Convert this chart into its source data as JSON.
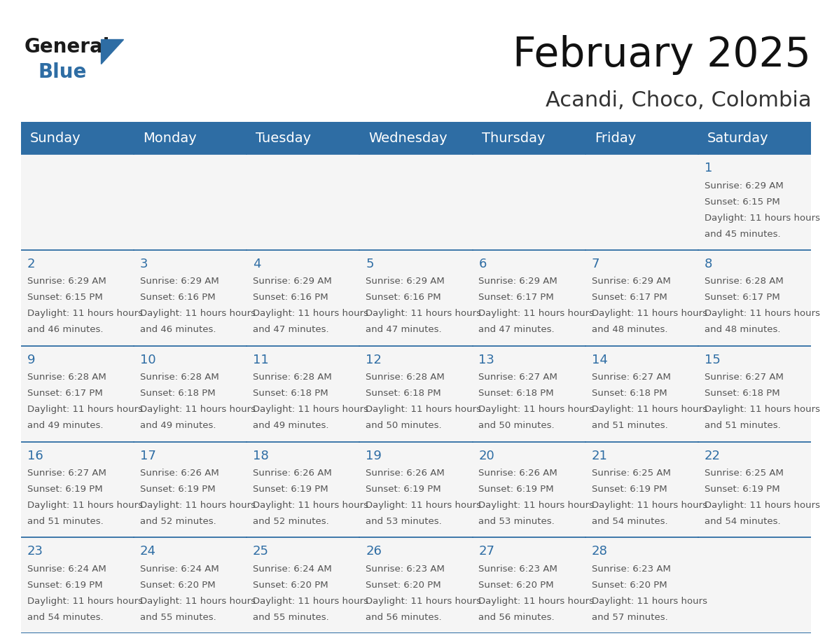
{
  "title": "February 2025",
  "subtitle": "Acandi, Choco, Colombia",
  "days_of_week": [
    "Sunday",
    "Monday",
    "Tuesday",
    "Wednesday",
    "Thursday",
    "Friday",
    "Saturday"
  ],
  "header_bg": "#2E6DA4",
  "header_text": "#FFFFFF",
  "cell_bg": "#F5F5F5",
  "line_color": "#2E6DA4",
  "day_num_color": "#2E6DA4",
  "text_color": "#555555",
  "calendar": [
    [
      null,
      null,
      null,
      null,
      null,
      null,
      1
    ],
    [
      2,
      3,
      4,
      5,
      6,
      7,
      8
    ],
    [
      9,
      10,
      11,
      12,
      13,
      14,
      15
    ],
    [
      16,
      17,
      18,
      19,
      20,
      21,
      22
    ],
    [
      23,
      24,
      25,
      26,
      27,
      28,
      null
    ]
  ],
  "sunrise": {
    "1": "6:29 AM",
    "2": "6:29 AM",
    "3": "6:29 AM",
    "4": "6:29 AM",
    "5": "6:29 AM",
    "6": "6:29 AM",
    "7": "6:29 AM",
    "8": "6:28 AM",
    "9": "6:28 AM",
    "10": "6:28 AM",
    "11": "6:28 AM",
    "12": "6:28 AM",
    "13": "6:27 AM",
    "14": "6:27 AM",
    "15": "6:27 AM",
    "16": "6:27 AM",
    "17": "6:26 AM",
    "18": "6:26 AM",
    "19": "6:26 AM",
    "20": "6:26 AM",
    "21": "6:25 AM",
    "22": "6:25 AM",
    "23": "6:24 AM",
    "24": "6:24 AM",
    "25": "6:24 AM",
    "26": "6:23 AM",
    "27": "6:23 AM",
    "28": "6:23 AM"
  },
  "sunset": {
    "1": "6:15 PM",
    "2": "6:15 PM",
    "3": "6:16 PM",
    "4": "6:16 PM",
    "5": "6:16 PM",
    "6": "6:17 PM",
    "7": "6:17 PM",
    "8": "6:17 PM",
    "9": "6:17 PM",
    "10": "6:18 PM",
    "11": "6:18 PM",
    "12": "6:18 PM",
    "13": "6:18 PM",
    "14": "6:18 PM",
    "15": "6:18 PM",
    "16": "6:19 PM",
    "17": "6:19 PM",
    "18": "6:19 PM",
    "19": "6:19 PM",
    "20": "6:19 PM",
    "21": "6:19 PM",
    "22": "6:19 PM",
    "23": "6:19 PM",
    "24": "6:20 PM",
    "25": "6:20 PM",
    "26": "6:20 PM",
    "27": "6:20 PM",
    "28": "6:20 PM"
  },
  "daylight": {
    "1": "11 hours and 45 minutes.",
    "2": "11 hours and 46 minutes.",
    "3": "11 hours and 46 minutes.",
    "4": "11 hours and 47 minutes.",
    "5": "11 hours and 47 minutes.",
    "6": "11 hours and 47 minutes.",
    "7": "11 hours and 48 minutes.",
    "8": "11 hours and 48 minutes.",
    "9": "11 hours and 49 minutes.",
    "10": "11 hours and 49 minutes.",
    "11": "11 hours and 49 minutes.",
    "12": "11 hours and 50 minutes.",
    "13": "11 hours and 50 minutes.",
    "14": "11 hours and 51 minutes.",
    "15": "11 hours and 51 minutes.",
    "16": "11 hours and 51 minutes.",
    "17": "11 hours and 52 minutes.",
    "18": "11 hours and 52 minutes.",
    "19": "11 hours and 53 minutes.",
    "20": "11 hours and 53 minutes.",
    "21": "11 hours and 54 minutes.",
    "22": "11 hours and 54 minutes.",
    "23": "11 hours and 54 minutes.",
    "24": "11 hours and 55 minutes.",
    "25": "11 hours and 55 minutes.",
    "26": "11 hours and 56 minutes.",
    "27": "11 hours and 56 minutes.",
    "28": "11 hours and 57 minutes."
  },
  "logo_general_color": "#1a1a1a",
  "logo_blue_color": "#2E6DA4",
  "title_fontsize": 42,
  "subtitle_fontsize": 22,
  "header_fontsize": 14,
  "day_num_fontsize": 13,
  "cell_text_fontsize": 9.5
}
